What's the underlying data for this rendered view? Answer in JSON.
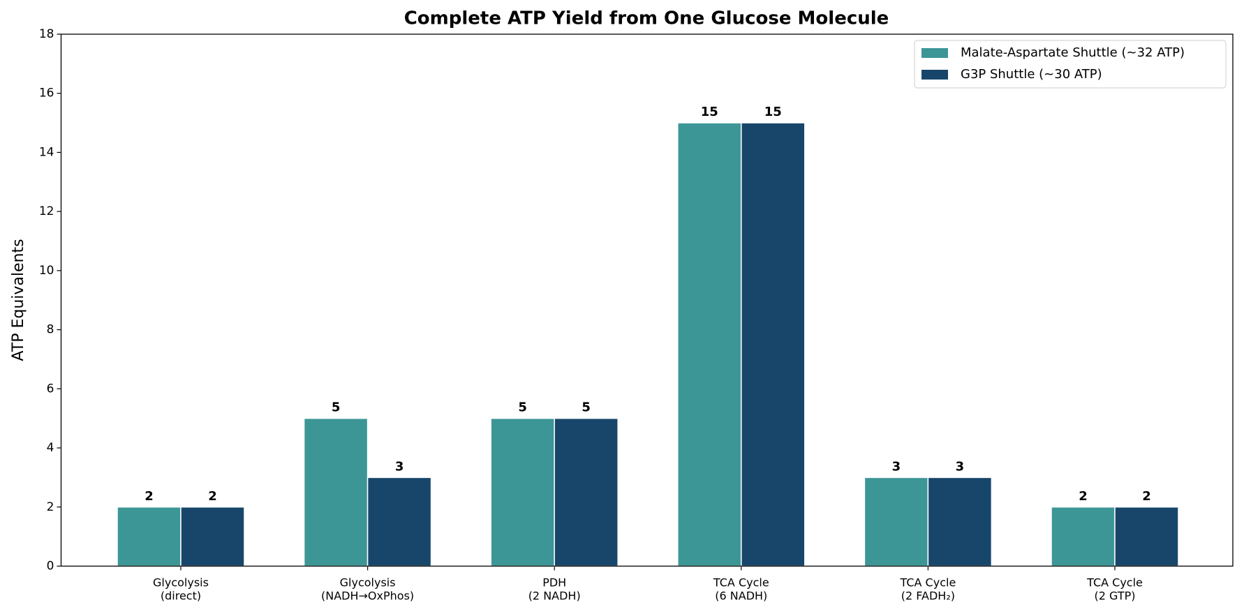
{
  "chart_data": {
    "type": "bar",
    "title": "Complete ATP Yield from One Glucose Molecule",
    "y_label": "ATP Equivalents",
    "categories": [
      "Glycolysis\n(direct)",
      "Glycolysis\n(NADH→OxPhos)",
      "PDH\n(2 NADH)",
      "TCA Cycle\n(6 NADH)",
      "TCA Cycle\n(2 FADH₂)",
      "TCA Cycle\n(2 GTP)"
    ],
    "series": [
      {
        "name": "Malate-Aspartate Shuttle (~32 ATP)",
        "color": "#3d9696",
        "values": [
          2,
          5,
          5,
          15,
          3,
          2
        ]
      },
      {
        "name": "G3P Shuttle (~30 ATP)",
        "color": "#18466a",
        "values": [
          2,
          3,
          5,
          15,
          3,
          2
        ]
      }
    ],
    "ylim": [
      0,
      18
    ],
    "yticks": [
      0,
      2,
      4,
      6,
      8,
      10,
      12,
      14,
      16,
      18
    ],
    "legend": "upper right"
  }
}
